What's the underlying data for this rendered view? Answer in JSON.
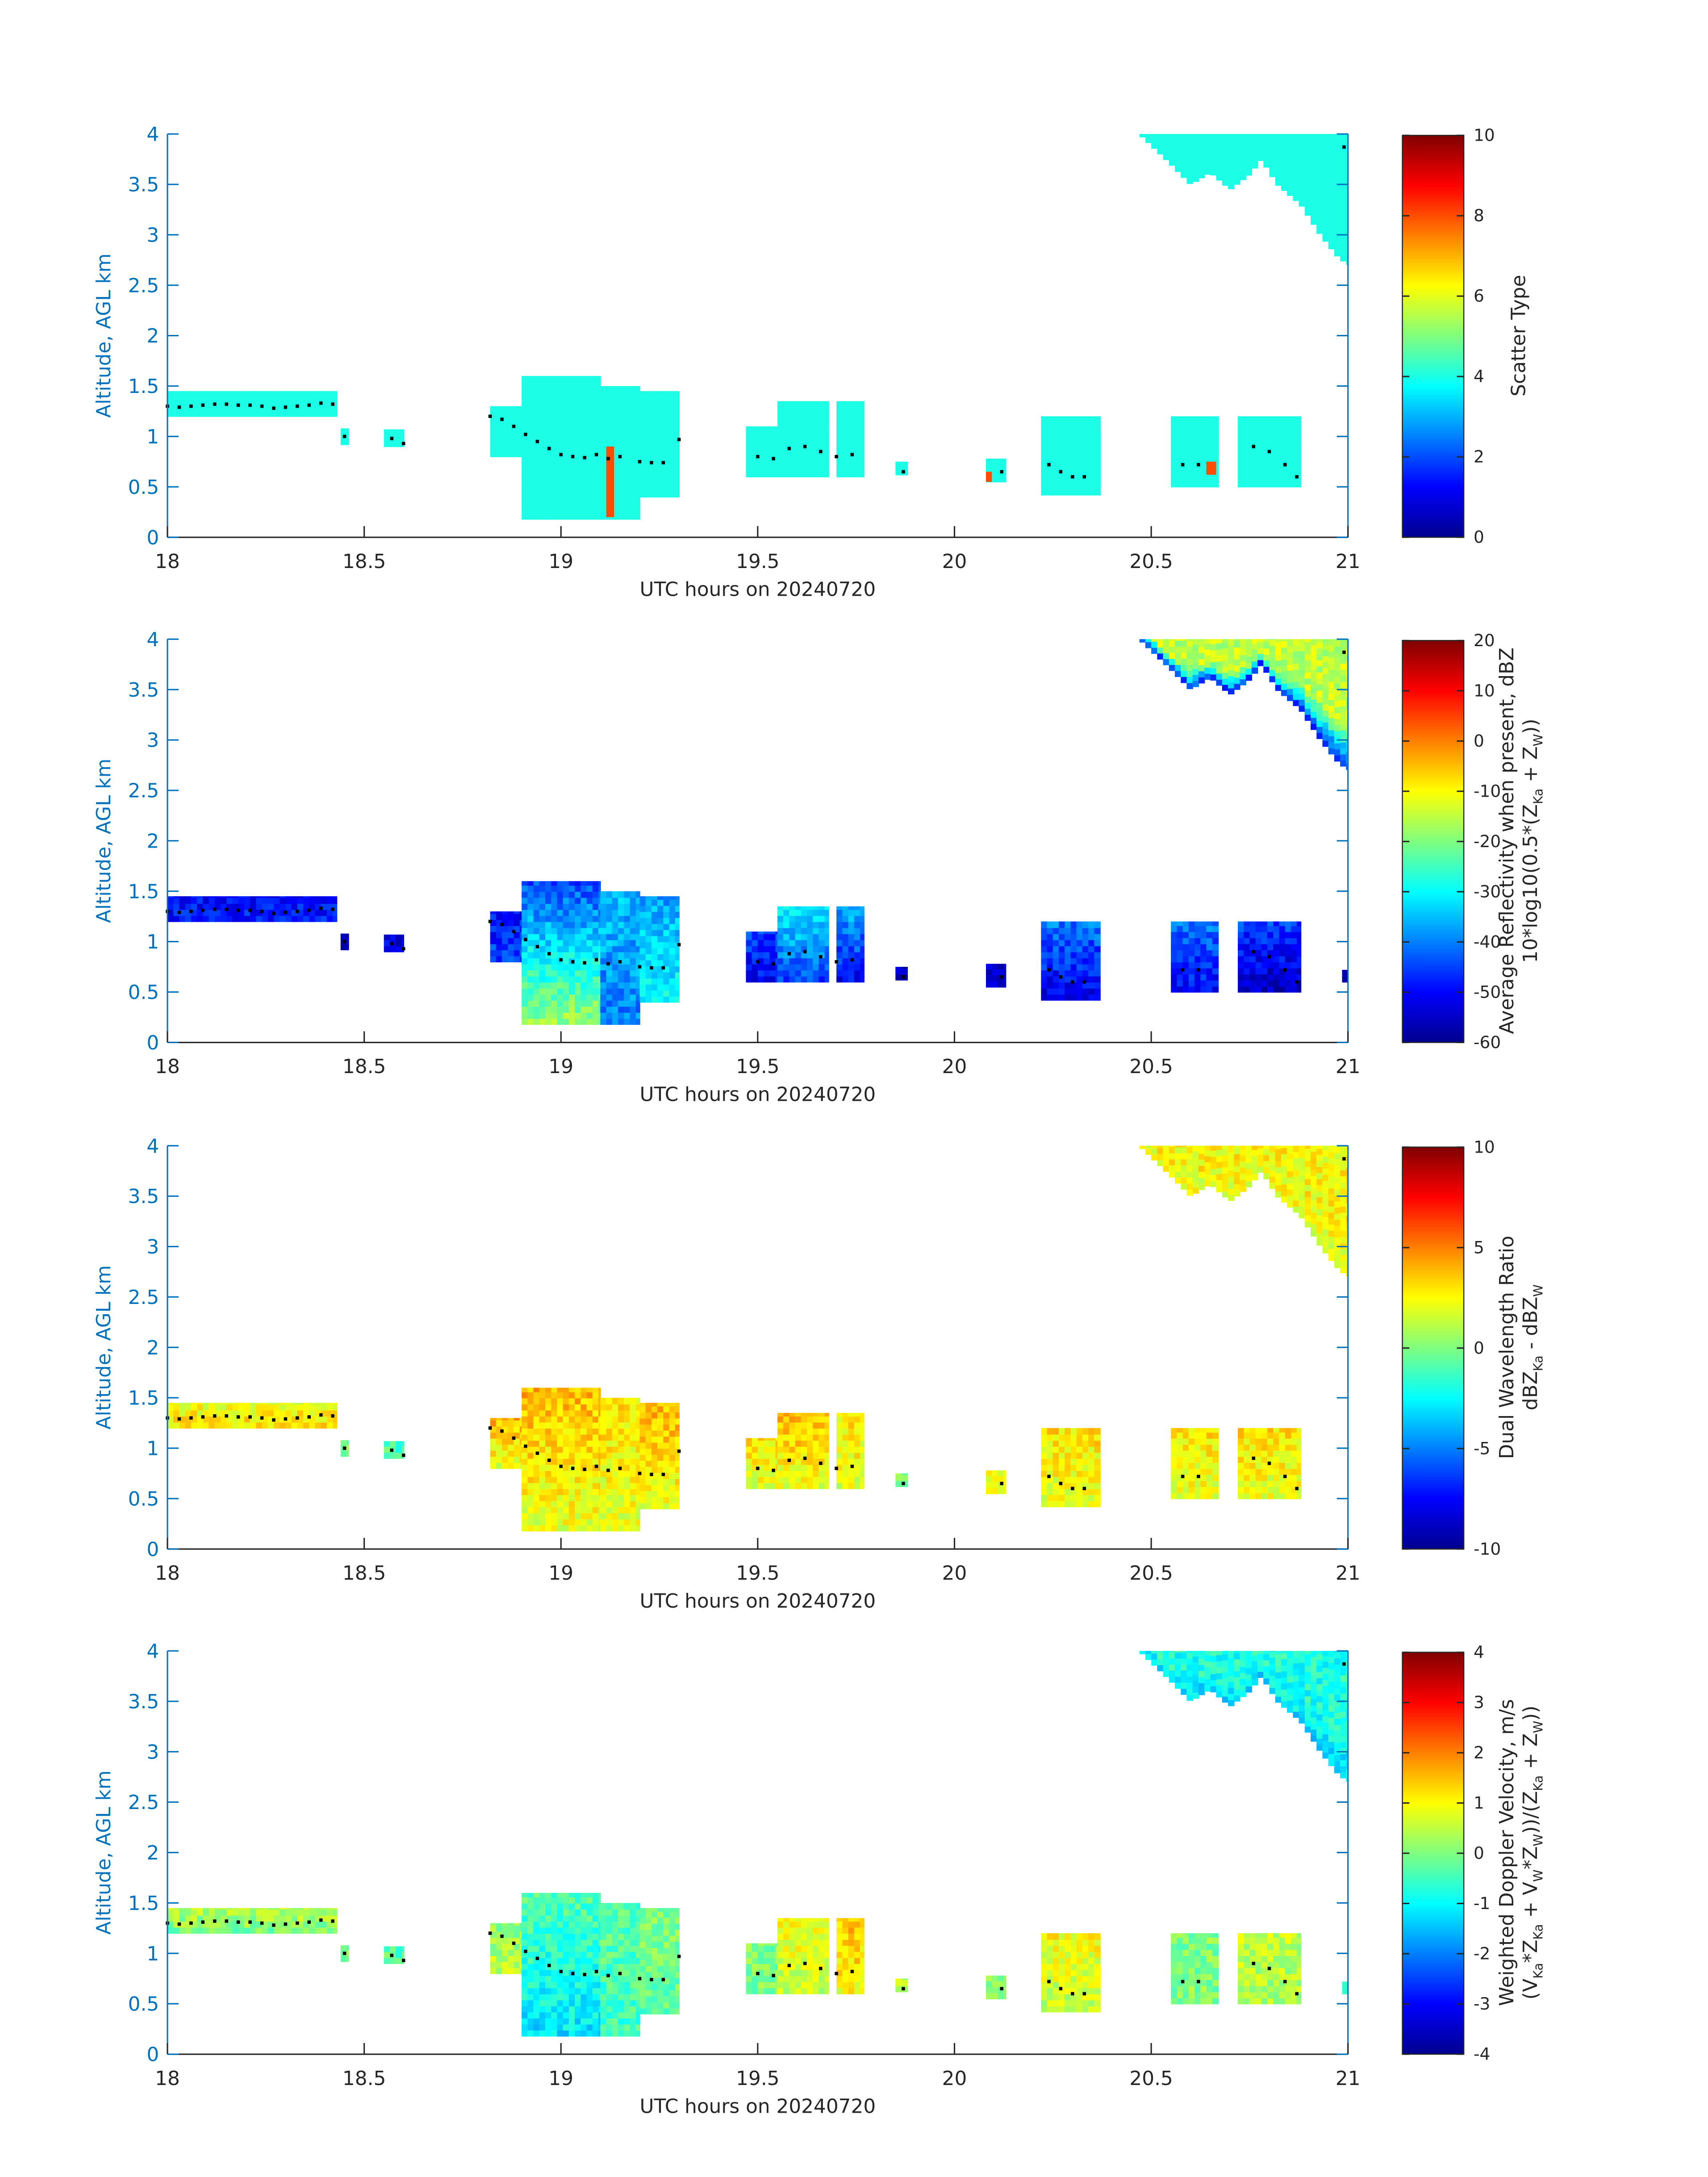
{
  "x_axis": {
    "label": "UTC hours on 20240720",
    "range": [
      18,
      21
    ],
    "ticks": [
      18,
      18.5,
      19,
      19.5,
      20,
      20.5,
      21
    ],
    "tick_labels": [
      "18",
      "18.5",
      "19",
      "19.5",
      "20",
      "20.5",
      "21"
    ]
  },
  "y_axis": {
    "label": "Altitude, AGL km",
    "range": [
      0,
      4
    ],
    "ticks": [
      0,
      0.5,
      1,
      1.5,
      2,
      2.5,
      3,
      3.5,
      4
    ],
    "tick_labels": [
      "0",
      "0.5",
      "1",
      "1.5",
      "2",
      "2.5",
      "3",
      "3.5",
      "4"
    ]
  },
  "colors": {
    "y_axis": "#0072BD",
    "x_axis": "#262626",
    "cloud_base_marker": "#000000",
    "colormap": "jet"
  },
  "regions_extent": [
    {
      "t": [
        18.0,
        18.43
      ],
      "z": [
        1.2,
        1.45
      ]
    },
    {
      "t": [
        18.44,
        18.46
      ],
      "z": [
        0.92,
        1.08
      ]
    },
    {
      "t": [
        18.55,
        18.6
      ],
      "z": [
        0.9,
        1.07
      ]
    },
    {
      "t": [
        18.82,
        18.9
      ],
      "z": [
        0.8,
        1.3
      ]
    },
    {
      "t": [
        18.9,
        19.1
      ],
      "z": [
        0.18,
        1.6
      ]
    },
    {
      "t": [
        19.1,
        19.2
      ],
      "z": [
        0.18,
        1.5
      ]
    },
    {
      "t": [
        19.2,
        19.3
      ],
      "z": [
        0.4,
        1.45
      ]
    },
    {
      "t": [
        19.47,
        19.55
      ],
      "z": [
        0.6,
        1.1
      ]
    },
    {
      "t": [
        19.55,
        19.68
      ],
      "z": [
        0.6,
        1.35
      ]
    },
    {
      "t": [
        19.7,
        19.77
      ],
      "z": [
        0.6,
        1.35
      ]
    },
    {
      "t": [
        19.85,
        19.88
      ],
      "z": [
        0.62,
        0.75
      ]
    },
    {
      "t": [
        20.08,
        20.13
      ],
      "z": [
        0.55,
        0.78
      ]
    },
    {
      "t": [
        20.22,
        20.37
      ],
      "z": [
        0.42,
        1.2
      ]
    },
    {
      "t": [
        20.55,
        20.67
      ],
      "z": [
        0.5,
        1.2
      ]
    },
    {
      "t": [
        20.72,
        20.88
      ],
      "z": [
        0.5,
        1.2
      ]
    },
    {
      "t": [
        20.985,
        21.0
      ],
      "z": [
        0.6,
        0.72
      ]
    }
  ],
  "upper_layer_base": [
    [
      20.47,
      4.0
    ],
    [
      20.55,
      3.7
    ],
    [
      20.6,
      3.5
    ],
    [
      20.65,
      3.62
    ],
    [
      20.7,
      3.45
    ],
    [
      20.75,
      3.6
    ],
    [
      20.78,
      3.75
    ],
    [
      20.82,
      3.5
    ],
    [
      20.88,
      3.3
    ],
    [
      20.93,
      3.0
    ],
    [
      20.97,
      2.8
    ],
    [
      21.0,
      2.7
    ]
  ],
  "cloud_base_points": [
    [
      18.0,
      1.3
    ],
    [
      18.03,
      1.29
    ],
    [
      18.06,
      1.3
    ],
    [
      18.09,
      1.31
    ],
    [
      18.12,
      1.32
    ],
    [
      18.15,
      1.32
    ],
    [
      18.18,
      1.31
    ],
    [
      18.21,
      1.31
    ],
    [
      18.24,
      1.3
    ],
    [
      18.27,
      1.28
    ],
    [
      18.3,
      1.29
    ],
    [
      18.33,
      1.3
    ],
    [
      18.36,
      1.31
    ],
    [
      18.39,
      1.33
    ],
    [
      18.42,
      1.32
    ],
    [
      18.45,
      1.0
    ],
    [
      18.57,
      0.98
    ],
    [
      18.6,
      0.93
    ],
    [
      18.82,
      1.2
    ],
    [
      18.85,
      1.17
    ],
    [
      18.88,
      1.1
    ],
    [
      18.91,
      1.02
    ],
    [
      18.94,
      0.95
    ],
    [
      18.97,
      0.88
    ],
    [
      19.0,
      0.82
    ],
    [
      19.03,
      0.8
    ],
    [
      19.06,
      0.79
    ],
    [
      19.09,
      0.82
    ],
    [
      19.12,
      0.78
    ],
    [
      19.15,
      0.8
    ],
    [
      19.2,
      0.75
    ],
    [
      19.23,
      0.74
    ],
    [
      19.26,
      0.74
    ],
    [
      19.3,
      0.97
    ],
    [
      19.5,
      0.8
    ],
    [
      19.54,
      0.78
    ],
    [
      19.58,
      0.88
    ],
    [
      19.62,
      0.9
    ],
    [
      19.66,
      0.85
    ],
    [
      19.7,
      0.8
    ],
    [
      19.74,
      0.82
    ],
    [
      19.87,
      0.65
    ],
    [
      20.12,
      0.65
    ],
    [
      20.24,
      0.72
    ],
    [
      20.27,
      0.65
    ],
    [
      20.3,
      0.6
    ],
    [
      20.33,
      0.6
    ],
    [
      20.58,
      0.72
    ],
    [
      20.62,
      0.72
    ],
    [
      20.76,
      0.9
    ],
    [
      20.8,
      0.85
    ],
    [
      20.84,
      0.72
    ],
    [
      20.87,
      0.6
    ],
    [
      20.99,
      3.87
    ]
  ],
  "chart_data": [
    {
      "type": "heatmap",
      "colorbar": {
        "label_lines": [
          [
            {
              "t": "Scatter Type"
            }
          ]
        ],
        "range": [
          0,
          10
        ],
        "ticks": [
          0,
          2,
          4,
          6,
          8,
          10
        ],
        "tick_labels": [
          "0",
          "2",
          "4",
          "6",
          "8",
          "10"
        ]
      },
      "region_values": [
        [
          4,
          4
        ],
        [
          4,
          4
        ],
        [
          4,
          4
        ],
        [
          4,
          4
        ],
        [
          4,
          4
        ],
        [
          4,
          4
        ],
        [
          4,
          4
        ],
        [
          4,
          4
        ],
        [
          4,
          4
        ],
        [
          4,
          4
        ],
        [
          4,
          4
        ],
        [
          4,
          4
        ],
        [
          4,
          4
        ],
        [
          4,
          4
        ],
        [
          4,
          4
        ],
        null
      ],
      "upper_layer_values": [
        4,
        4
      ],
      "special_cells": [
        {
          "t": [
            19.115,
            19.135
          ],
          "z": [
            0.2,
            0.9
          ],
          "v": 8
        },
        {
          "t": [
            20.08,
            20.095
          ],
          "z": [
            0.55,
            0.65
          ],
          "v": 8
        },
        {
          "t": [
            20.64,
            20.665
          ],
          "z": [
            0.62,
            0.75
          ],
          "v": 8
        }
      ]
    },
    {
      "type": "heatmap",
      "colorbar": {
        "label_lines": [
          [
            {
              "t": "Average Reflectivity when present, dBZ"
            }
          ],
          [
            {
              "t": "10*log10(0.5*(Z"
            },
            {
              "sub": "Ka"
            },
            {
              "t": " + Z"
            },
            {
              "sub": "W"
            },
            {
              "t": "))"
            }
          ]
        ],
        "range": [
          -60,
          20
        ],
        "ticks": [
          -60,
          -50,
          -40,
          -30,
          -20,
          -10,
          0,
          10,
          20
        ],
        "tick_labels": [
          "-60",
          "-50",
          "-40",
          "-30",
          "-20",
          "-10",
          "0",
          "10",
          "20"
        ]
      },
      "region_values": [
        [
          -48,
          -50
        ],
        [
          -55,
          -55
        ],
        [
          -52,
          -52
        ],
        [
          -45,
          -50
        ],
        [
          -18,
          -45
        ],
        [
          -40,
          -35
        ],
        [
          -30,
          -38
        ],
        [
          -50,
          -45
        ],
        [
          -45,
          -30
        ],
        [
          -50,
          -35
        ],
        [
          -55,
          -55
        ],
        [
          -55,
          -55
        ],
        [
          -52,
          -40
        ],
        [
          -50,
          -40
        ],
        [
          -55,
          -45
        ],
        [
          -55,
          -55
        ]
      ],
      "upper_layer_values": [
        -45,
        -15
      ],
      "special_cells": []
    },
    {
      "type": "heatmap",
      "colorbar": {
        "label_lines": [
          [
            {
              "t": "Dual Wavelength Ratio"
            }
          ],
          [
            {
              "t": "dBZ"
            },
            {
              "sub": "Ka"
            },
            {
              "t": " - dBZ"
            },
            {
              "sub": "W"
            }
          ]
        ],
        "range": [
          -10,
          10
        ],
        "ticks": [
          -10,
          -5,
          0,
          5,
          10
        ],
        "tick_labels": [
          "-10",
          "-5",
          "0",
          "5",
          "10"
        ]
      },
      "region_values": [
        [
          3,
          2
        ],
        [
          0,
          0
        ],
        [
          -1,
          -1
        ],
        [
          2,
          4
        ],
        [
          2,
          4
        ],
        [
          2,
          3
        ],
        [
          2,
          4
        ],
        [
          2,
          3
        ],
        [
          2,
          4
        ],
        [
          2,
          3
        ],
        [
          0,
          0
        ],
        [
          2,
          2
        ],
        [
          2,
          3
        ],
        [
          2,
          3
        ],
        [
          2,
          3
        ],
        null
      ],
      "upper_layer_values": [
        2,
        2.5
      ],
      "special_cells": []
    },
    {
      "type": "heatmap",
      "colorbar": {
        "label_lines": [
          [
            {
              "t": "Weighted Doppler Velocity, m/s"
            }
          ],
          [
            {
              "t": "(V"
            },
            {
              "sub": "Ka"
            },
            {
              "t": "*Z"
            },
            {
              "sub": "Ka"
            },
            {
              "t": " + V"
            },
            {
              "sub": "W"
            },
            {
              "t": "*Z"
            },
            {
              "sub": "W"
            },
            {
              "t": "))/(Z"
            },
            {
              "sub": "Ka"
            },
            {
              "t": " + Z"
            },
            {
              "sub": "W"
            },
            {
              "t": "))"
            }
          ]
        ],
        "range": [
          -4,
          4
        ],
        "ticks": [
          -4,
          -3,
          -2,
          -1,
          0,
          1,
          2,
          3,
          4
        ],
        "tick_labels": [
          "-4",
          "-3",
          "-2",
          "-1",
          "0",
          "1",
          "2",
          "3",
          "4"
        ]
      },
      "region_values": [
        [
          0,
          0.5
        ],
        [
          0,
          0
        ],
        [
          -0.3,
          -0.3
        ],
        [
          0.5,
          0
        ],
        [
          -1.2,
          -0.3
        ],
        [
          -0.5,
          -0.3
        ],
        [
          -0.3,
          0
        ],
        [
          0,
          0
        ],
        [
          0.5,
          1
        ],
        [
          1,
          1.5
        ],
        [
          0.5,
          0.5
        ],
        [
          0,
          0
        ],
        [
          0.5,
          1
        ],
        [
          0,
          0
        ],
        [
          0.3,
          0.5
        ],
        [
          -0.5,
          -0.5
        ]
      ],
      "upper_layer_values": [
        -1.3,
        -0.8
      ],
      "special_cells": []
    }
  ]
}
